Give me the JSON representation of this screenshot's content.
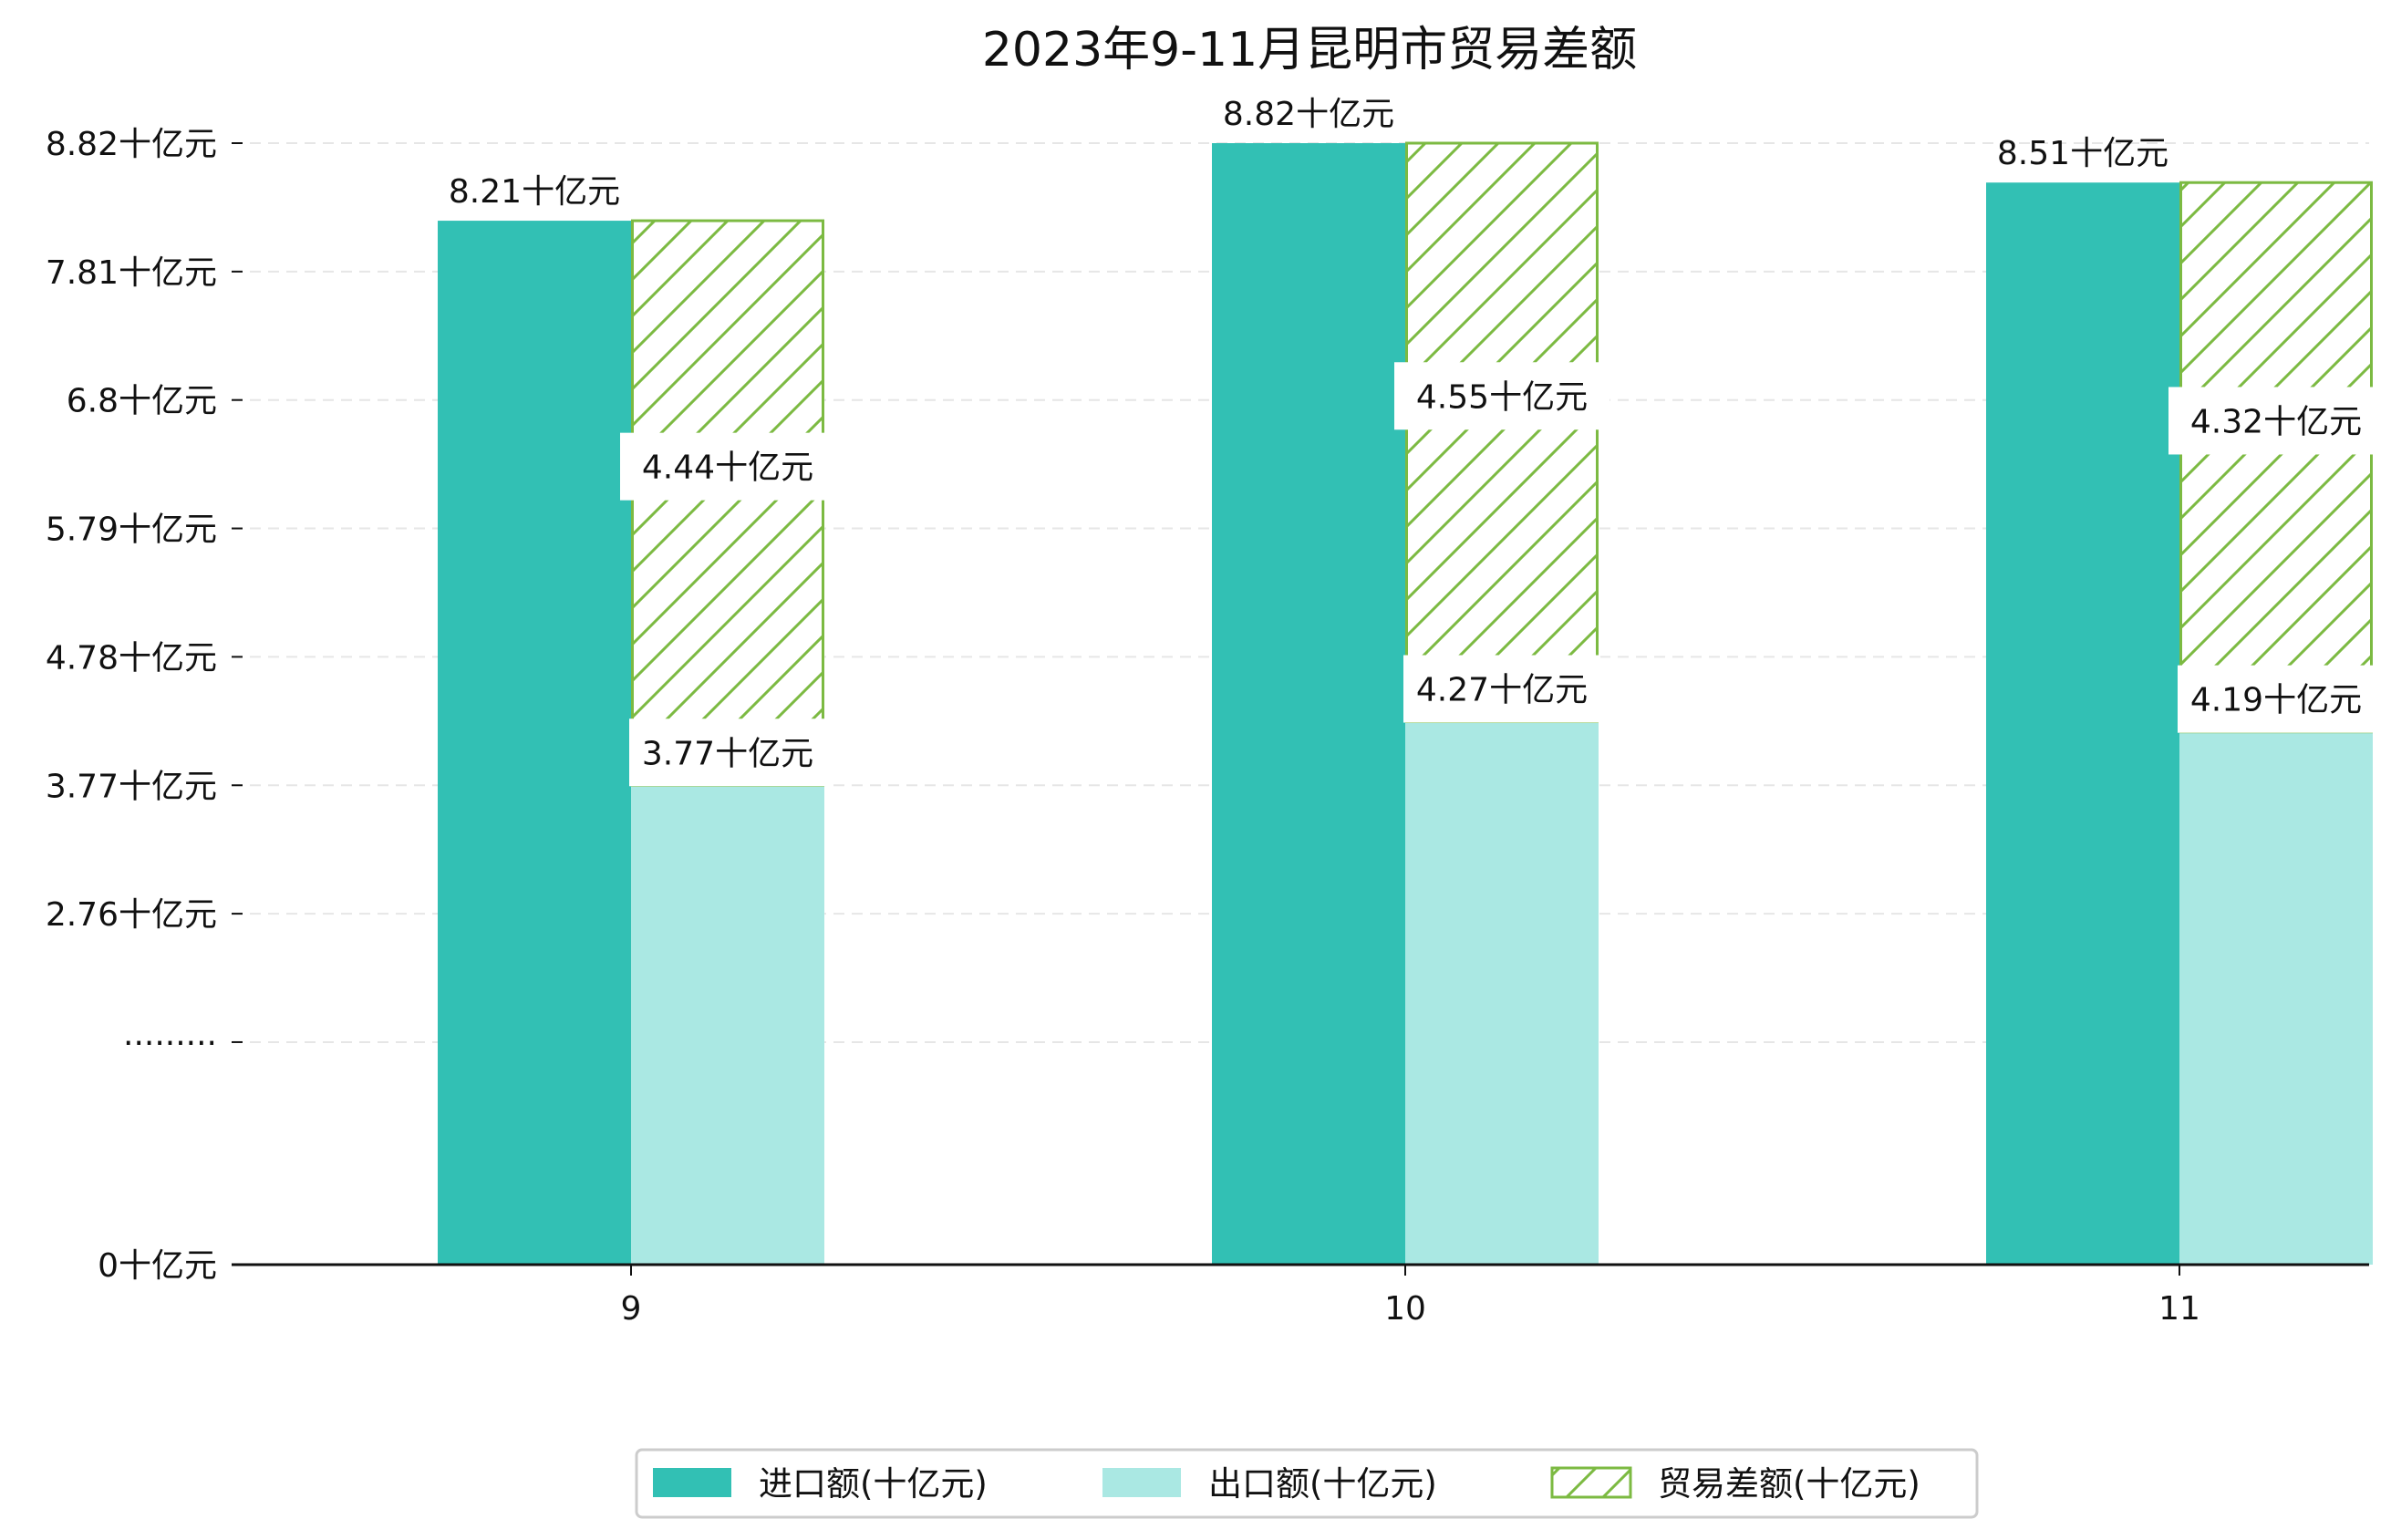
{
  "chart_data": {
    "type": "bar",
    "title": "2023年9-11月昆明市贸易差额",
    "categories": [
      "9",
      "10",
      "11"
    ],
    "series": [
      {
        "name": "进口额(十亿元)",
        "values": [
          8.21,
          8.82,
          8.51
        ],
        "color": "#32c0b4",
        "style": "solid"
      },
      {
        "name": "出口额(十亿元)",
        "values": [
          3.77,
          4.27,
          4.19
        ],
        "color": "#aae8e3",
        "style": "solid"
      },
      {
        "name": "贸易差额(十亿元)",
        "values": [
          4.44,
          4.55,
          4.32
        ],
        "color": "#7cba42",
        "style": "hatched",
        "stacked_on": "出口额(十亿元)"
      }
    ],
    "data_labels": {
      "import": [
        "8.21十亿元",
        "8.82十亿元",
        "8.51十亿元"
      ],
      "export": [
        "3.77十亿元",
        "4.27十亿元",
        "4.19十亿元"
      ],
      "balance": [
        "4.44十亿元",
        "4.55十亿元",
        "4.32十亿元"
      ]
    },
    "y_ticks": [
      {
        "value": 0,
        "label": "0十亿元"
      },
      {
        "value": 1.75,
        "label": "·········"
      },
      {
        "value": 2.76,
        "label": "2.76十亿元"
      },
      {
        "value": 3.77,
        "label": "3.77十亿元"
      },
      {
        "value": 4.78,
        "label": "4.78十亿元"
      },
      {
        "value": 5.79,
        "label": "5.79十亿元"
      },
      {
        "value": 6.8,
        "label": "6.8十亿元"
      },
      {
        "value": 7.81,
        "label": "7.81十亿元"
      },
      {
        "value": 8.82,
        "label": "8.82十亿元"
      }
    ],
    "ylim": [
      0,
      8.82
    ],
    "y_axis_break": true,
    "grid": "horizontal-dashed",
    "legend": {
      "position": "bottom-center"
    },
    "xlabel": "",
    "ylabel": ""
  }
}
